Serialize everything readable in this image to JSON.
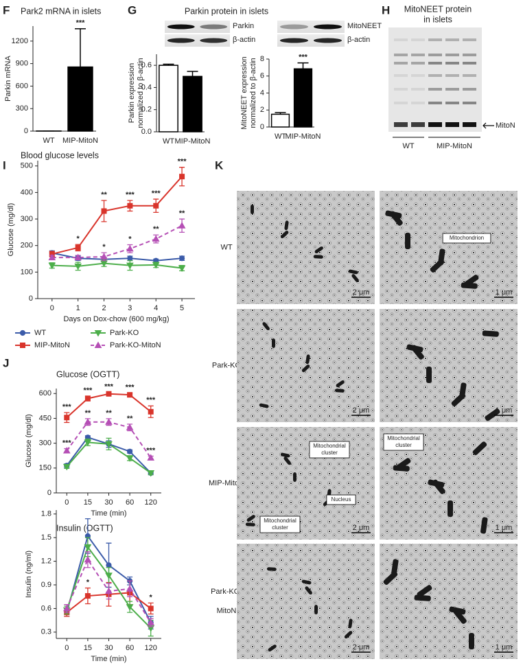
{
  "chart_data": [
    {
      "type": "bar",
      "panel": "F",
      "title": "Park2 mRNA in islets",
      "ylabel": [
        "Parkin mRNA"
      ],
      "categories": [
        "WT",
        "MIP-MitoN"
      ],
      "values": [
        2,
        855
      ],
      "errors": [
        0,
        510
      ],
      "labels": [
        null,
        "***"
      ],
      "colors": [
        "#ffffff",
        "#000000"
      ],
      "ylim": [
        0,
        1400
      ],
      "yticks": [
        0,
        300,
        600,
        900,
        1200
      ]
    },
    {
      "type": "bar",
      "panel": "G",
      "ylabel": [
        "Parkin expression",
        "normalized to β-actin"
      ],
      "categories": [
        "WT",
        "MIP-MitoN"
      ],
      "values": [
        0.6,
        0.5
      ],
      "errors": [
        0.01,
        0.045
      ],
      "labels": [
        null,
        null
      ],
      "colors": [
        "#ffffff",
        "#000000"
      ],
      "ylim": [
        0,
        0.7
      ],
      "yticks": [
        {
          "value": 0,
          "label": "0.0"
        },
        0.2,
        0.4,
        0.6
      ]
    },
    {
      "type": "bar",
      "ylabel": [
        "MitoNEET expression",
        "normalized to β-actin"
      ],
      "categories": [
        "WT",
        "MIP-MitoN"
      ],
      "values": [
        1.5,
        6.85
      ],
      "errors": [
        0.2,
        0.7
      ],
      "labels": [
        null,
        "***"
      ],
      "colors": [
        "#ffffff",
        "#000000"
      ],
      "ylim": [
        0,
        8
      ],
      "yticks": [
        0,
        2,
        4,
        6,
        8
      ]
    },
    {
      "type": "line",
      "panel": "I",
      "title": "Blood glucose levels",
      "ylabel": [
        "Glucose (mg/dl)"
      ],
      "xlabel": "Days on Dox-chow (600 mg/kg)",
      "x": [
        0,
        1,
        2,
        3,
        4,
        5
      ],
      "xlim": [
        -0.55,
        5.5
      ],
      "xticks": [
        0,
        1,
        2,
        3,
        4,
        5
      ],
      "ylim": [
        0,
        520
      ],
      "yticks": [
        0,
        100,
        200,
        300,
        400,
        500
      ],
      "legend": "below",
      "series": [
        {
          "name": "WT",
          "color": "#3b5ba9",
          "marker": "circle",
          "dashed": false,
          "values": [
            172,
            152,
            148,
            152,
            143,
            152
          ],
          "errors": [
            8,
            8,
            8,
            8,
            6,
            8
          ],
          "labels": [
            null,
            null,
            null,
            null,
            null,
            null
          ]
        },
        {
          "name": "MIP-MitoN",
          "color": "#d9342b",
          "marker": "square",
          "dashed": false,
          "values": [
            168,
            192,
            330,
            350,
            350,
            460
          ],
          "errors": [
            10,
            12,
            40,
            20,
            25,
            35
          ],
          "labels": [
            null,
            "*",
            "**",
            "***",
            "***",
            "***"
          ]
        },
        {
          "name": "Park-KO",
          "color": "#4cae4a",
          "marker": "tri-down",
          "dashed": false,
          "values": [
            125,
            122,
            133,
            125,
            127,
            115
          ],
          "errors": [
            10,
            15,
            12,
            18,
            10,
            10
          ],
          "labels": [
            null,
            null,
            null,
            null,
            null,
            null
          ]
        },
        {
          "name": "Park-KO-MitoN",
          "color": "#b54fb5",
          "marker": "tri-up",
          "dashed": true,
          "values": [
            155,
            155,
            158,
            188,
            225,
            275
          ],
          "errors": [
            8,
            8,
            15,
            15,
            15,
            25
          ],
          "labels": [
            null,
            null,
            "*",
            "*",
            "**",
            "**"
          ]
        }
      ]
    },
    {
      "type": "line",
      "panel": "J",
      "title": "Glucose (OGTT)",
      "ylabel": [
        "Glucose (mg/dl)"
      ],
      "xlabel": "Time (min)",
      "categories": [
        "0",
        "15",
        "30",
        "60",
        "120"
      ],
      "ylim": [
        0,
        630
      ],
      "yticks": [
        0,
        150,
        300,
        450,
        600
      ],
      "series": [
        {
          "color": "#3b5ba9",
          "marker": "circle",
          "dashed": false,
          "values": [
            165,
            335,
            295,
            250,
            120
          ],
          "errors": [
            10,
            10,
            20,
            10,
            10
          ],
          "labels": [
            null,
            null,
            null,
            null,
            null
          ]
        },
        {
          "color": "#d9342b",
          "marker": "square",
          "dashed": false,
          "values": [
            455,
            570,
            598,
            592,
            490
          ],
          "errors": [
            30,
            15,
            8,
            10,
            35
          ],
          "labels": [
            "***",
            "***",
            "***",
            "***",
            "***"
          ]
        },
        {
          "color": "#4cae4a",
          "marker": "tri-down",
          "dashed": false,
          "values": [
            158,
            305,
            295,
            210,
            120
          ],
          "errors": [
            10,
            20,
            35,
            15,
            10
          ],
          "labels": [
            null,
            null,
            null,
            null,
            null
          ]
        },
        {
          "color": "#b54fb5",
          "marker": "tri-up",
          "dashed": true,
          "values": [
            255,
            428,
            428,
            395,
            212
          ],
          "errors": [
            12,
            20,
            20,
            20,
            10
          ],
          "labels": [
            "***",
            "**",
            "**",
            "**",
            "***"
          ]
        }
      ]
    },
    {
      "type": "line",
      "title": "Insulin (OGTT)",
      "ylabel": [
        "Insulin (ng/ml)"
      ],
      "xlabel": "Time (min)",
      "categories": [
        "0",
        "15",
        "30",
        "60",
        "120"
      ],
      "ylim": [
        0.22,
        1.85
      ],
      "yticks": [
        0.3,
        0.6,
        0.9,
        1.2,
        1.5,
        1.8
      ],
      "series": [
        {
          "color": "#3b5ba9",
          "marker": "circle",
          "dashed": false,
          "values": [
            0.55,
            1.52,
            1.15,
            0.95,
            0.42
          ],
          "errors": [
            0.05,
            0.22,
            0.28,
            0.05,
            0.08
          ],
          "labels": [
            null,
            null,
            null,
            null,
            null
          ]
        },
        {
          "color": "#d9342b",
          "marker": "square",
          "dashed": false,
          "values": [
            0.55,
            0.76,
            0.78,
            0.8,
            0.6
          ],
          "errors": [
            0.05,
            0.1,
            0.15,
            0.15,
            0.07
          ],
          "labels": [
            null,
            "*",
            null,
            null,
            "*"
          ]
        },
        {
          "color": "#4cae4a",
          "marker": "tri-down",
          "dashed": false,
          "values": [
            0.58,
            1.38,
            1.02,
            0.62,
            0.35
          ],
          "errors": [
            0.05,
            0.12,
            0.1,
            0.07,
            0.1
          ],
          "labels": [
            null,
            null,
            null,
            null,
            null
          ]
        },
        {
          "color": "#b54fb5",
          "marker": "tri-up",
          "dashed": true,
          "values": [
            0.6,
            1.22,
            0.82,
            0.85,
            0.42
          ],
          "errors": [
            0.05,
            0.1,
            0.1,
            0.1,
            0.05
          ],
          "labels": [
            null,
            null,
            null,
            null,
            null
          ]
        }
      ]
    }
  ],
  "blots": {
    "G": {
      "title": "Parkin protein in islets",
      "bands": [
        "Parkin",
        "β-actin",
        "MitoNEET",
        "β-actin"
      ]
    },
    "H": {
      "panel": "H",
      "title": [
        "MitoNEET protein",
        "in islets"
      ],
      "arrow_label": "MitoN",
      "groups": [
        "WT",
        "MIP-MitoN"
      ]
    }
  },
  "micrographs": {
    "panel": "K",
    "rows": [
      [
        "WT"
      ],
      [
        "Park-KO"
      ],
      [
        "MIP-MitoN"
      ],
      [
        "Park-KO-",
        "MitoN"
      ]
    ],
    "scale_bars": [
      [
        "2 μm",
        "1 μm"
      ],
      [
        "2 μm",
        "1 μm"
      ],
      [
        "2 μm",
        "1 μm"
      ],
      [
        "2 μm",
        "1 μm"
      ]
    ],
    "annotations": [
      [
        "Mitochondrion"
      ],
      [
        "Mitochondrial",
        "cluster"
      ],
      [
        "Nucleus"
      ],
      [
        "Mitochondrial",
        "cluster"
      ],
      [
        "Mitochondrial",
        "cluster"
      ]
    ]
  }
}
